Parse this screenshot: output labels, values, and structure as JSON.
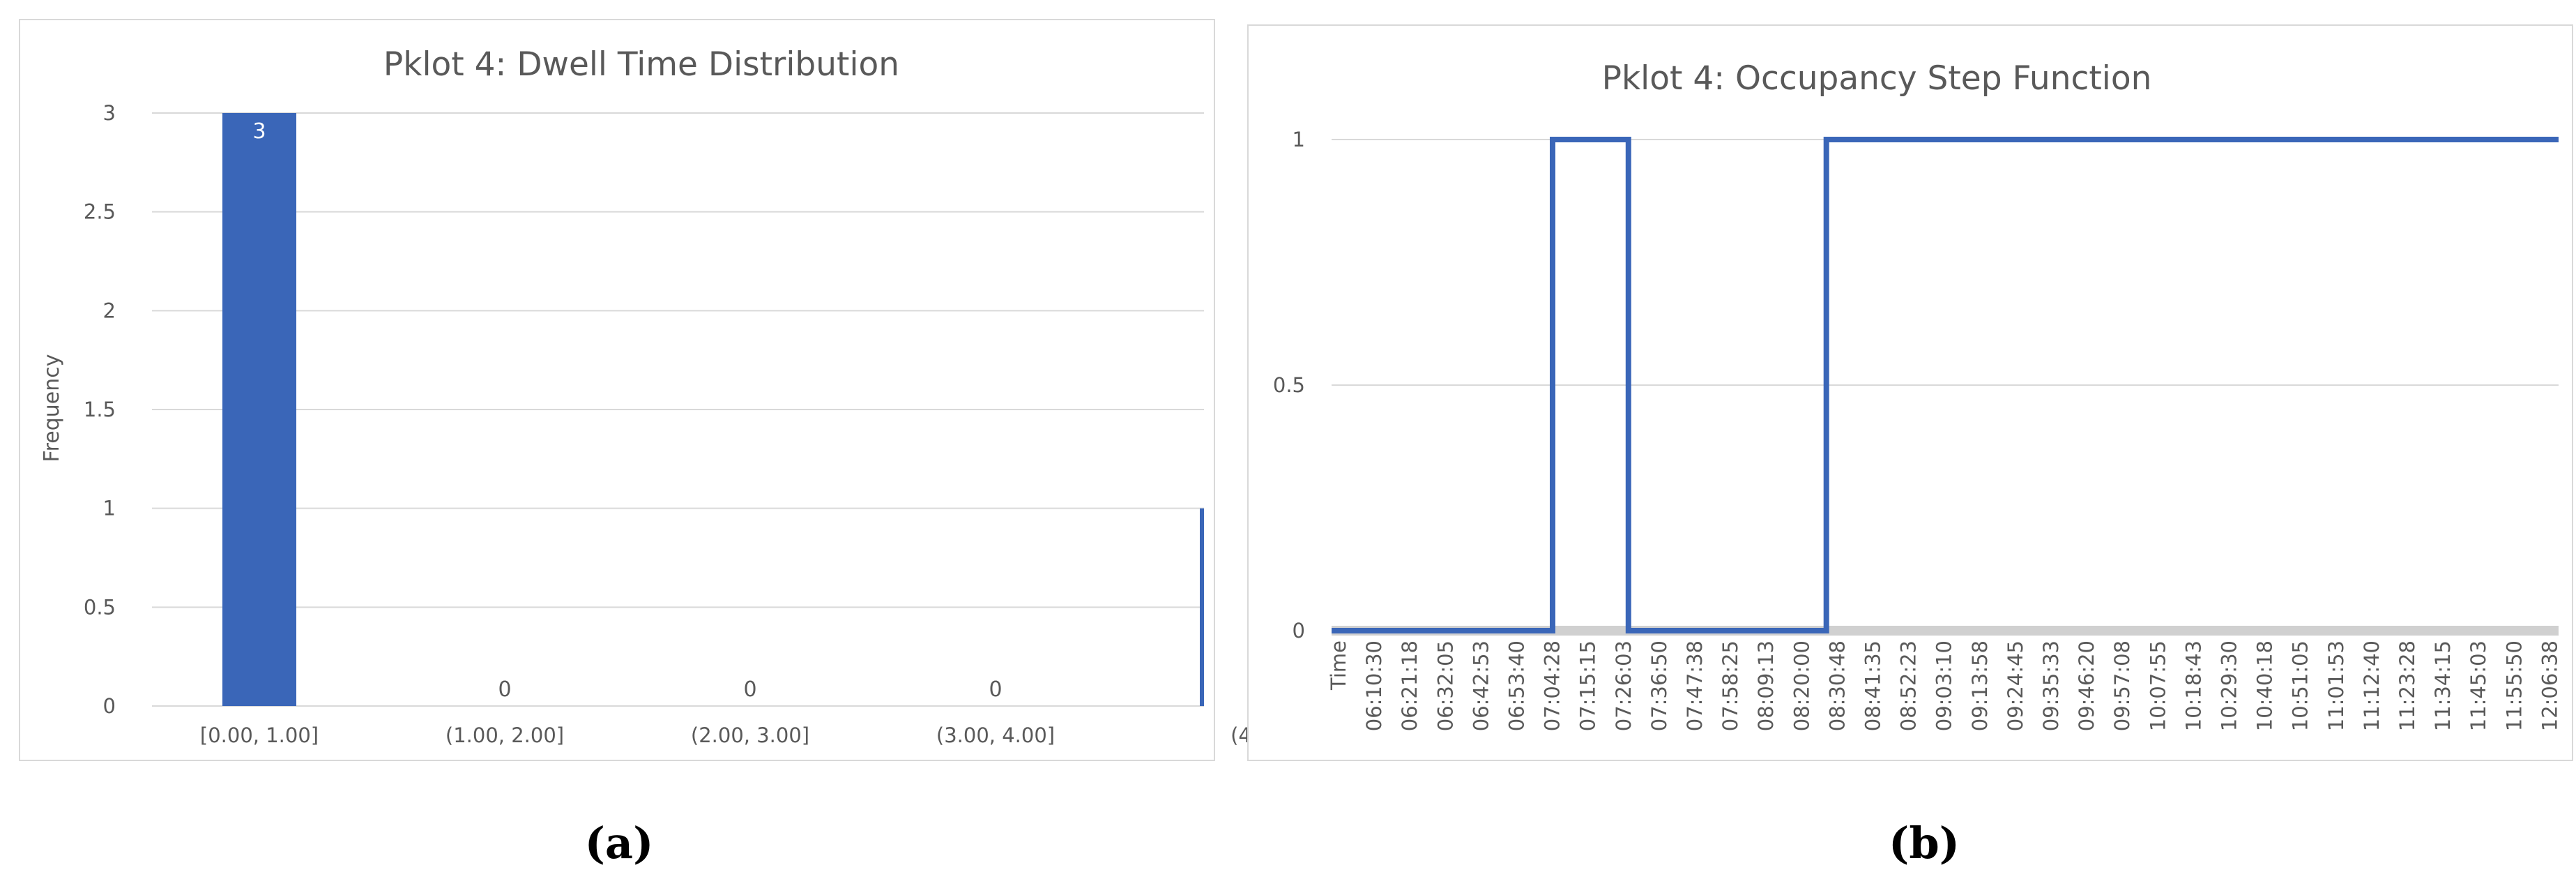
{
  "panels": [
    {
      "label": "(a)"
    },
    {
      "label": "(b)"
    }
  ],
  "chart_data": [
    {
      "type": "bar",
      "title": "Pklot 4: Dwell Time Distribution",
      "xlabel": "",
      "ylabel": "Frequency",
      "ylim": [
        0,
        3
      ],
      "yticks": [
        "0",
        "0.5",
        "1",
        "1.5",
        "2",
        "2.5",
        "3"
      ],
      "categories": [
        "[0.00, 1.00]",
        "(1.00, 2.00]",
        "(2.00, 3.00]",
        "(3.00, 4.00]",
        "(4"
      ],
      "values": [
        3,
        0,
        0,
        0,
        1
      ],
      "data_labels": [
        "3",
        "0",
        "0",
        "0",
        ""
      ],
      "grid": true,
      "colors": {
        "bar": "#3A66B8",
        "grid": "#D9D9D9",
        "text": "#595959",
        "label_on_bar": "#FFFFFF"
      }
    },
    {
      "type": "line",
      "step": true,
      "title": "Pklot 4: Occupancy Step Function",
      "xlabel": "",
      "ylabel": "",
      "ylim": [
        0,
        1
      ],
      "yticks": [
        "0",
        "0.5",
        "1"
      ],
      "xticks": [
        "Time",
        "06:10:30",
        "06:21:18",
        "06:32:05",
        "06:42:53",
        "06:53:40",
        "07:04:28",
        "07:15:15",
        "07:26:03",
        "07:36:50",
        "07:47:38",
        "07:58:25",
        "08:09:13",
        "08:20:00",
        "08:30:48",
        "08:41:35",
        "08:52:23",
        "09:03:10",
        "09:13:58",
        "09:24:45",
        "09:35:33",
        "09:46:20",
        "09:57:08",
        "10:07:55",
        "10:18:43",
        "10:29:30",
        "10:40:18",
        "10:51:05",
        "11:01:53",
        "11:12:40",
        "11:23:28",
        "11:34:15",
        "11:45:03",
        "11:55:50",
        "12:06:38"
      ],
      "x": [
        "06:00:00",
        "07:07:00",
        "07:07:00",
        "07:30:00",
        "07:30:00",
        "07:31:00",
        "07:31:00",
        "08:30:00",
        "08:30:00",
        "12:12:00"
      ],
      "y": [
        0,
        0,
        1,
        1,
        0,
        0,
        0,
        0,
        1,
        1
      ],
      "grid": true,
      "colors": {
        "line": "#3A66B8",
        "grid": "#D9D9D9",
        "baseline": "#D0D0D0",
        "text": "#595959"
      }
    }
  ]
}
